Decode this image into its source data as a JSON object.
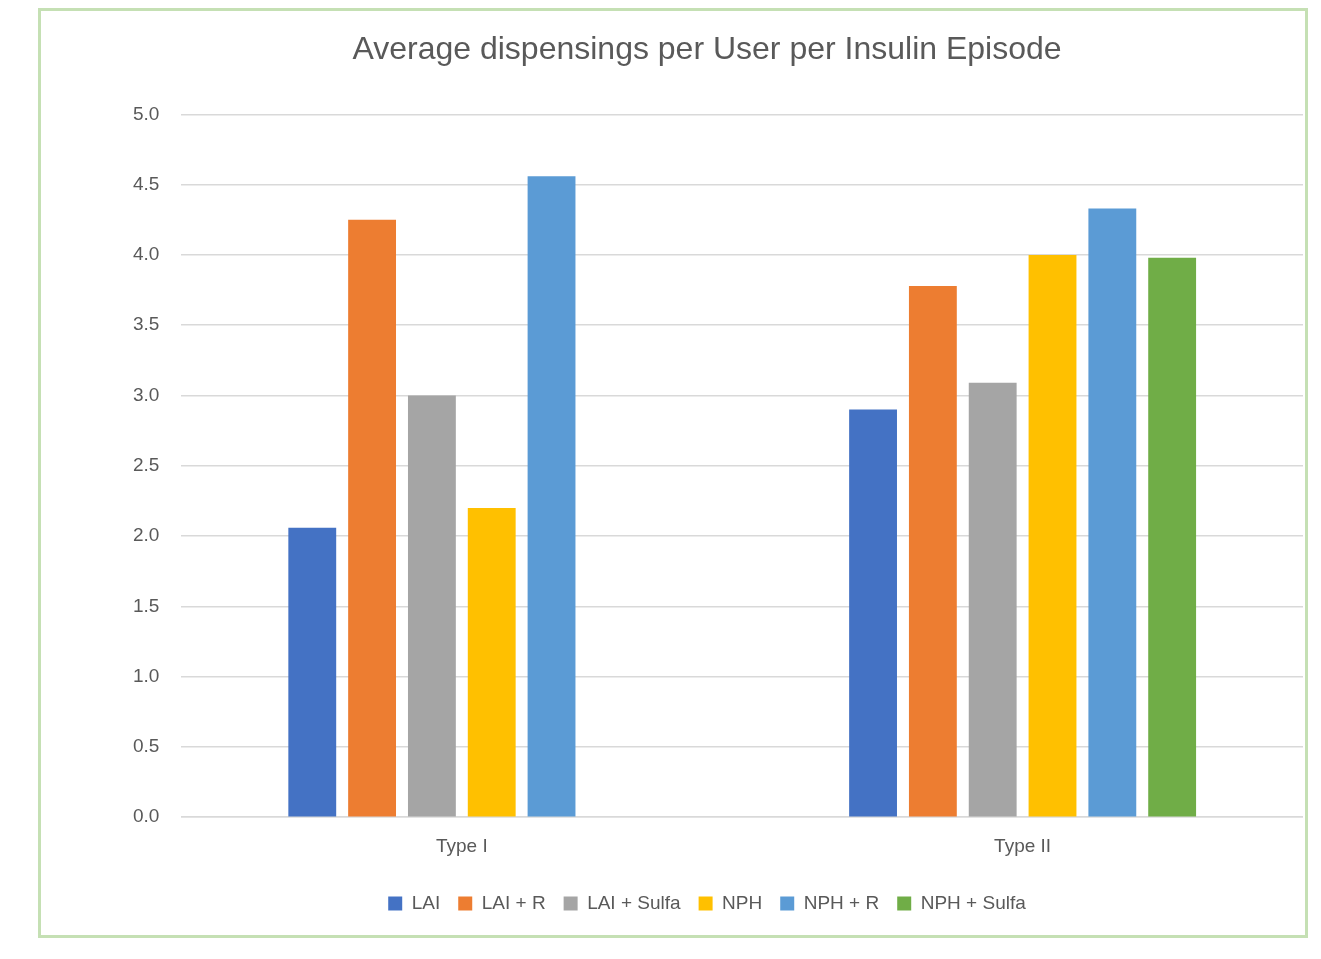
{
  "chart_data": {
    "type": "bar",
    "title": "Average dispensings per User per Insulin Episode",
    "categories": [
      "Type I",
      "Type II"
    ],
    "series": [
      {
        "name": "LAI",
        "color": "#4472c4",
        "values": [
          2.06,
          2.9
        ]
      },
      {
        "name": "LAI + R",
        "color": "#ed7d31",
        "values": [
          4.25,
          3.78
        ]
      },
      {
        "name": "LAI + Sulfa",
        "color": "#a5a5a5",
        "values": [
          3.0,
          3.09
        ]
      },
      {
        "name": "NPH",
        "color": "#ffc000",
        "values": [
          2.2,
          4.0
        ]
      },
      {
        "name": "NPH + R",
        "color": "#5b9bd5",
        "values": [
          4.56,
          4.33
        ]
      },
      {
        "name": "NPH + Sulfa",
        "color": "#70ad47",
        "values": [
          null,
          3.98
        ]
      }
    ],
    "ylim": [
      0,
      5
    ],
    "yticks": [
      {
        "value": 0,
        "label": "0.0"
      },
      {
        "value": 0.5,
        "label": "0.5"
      },
      {
        "value": 1,
        "label": "1.0"
      },
      {
        "value": 1.5,
        "label": "1.5"
      },
      {
        "value": 2,
        "label": "2.0"
      },
      {
        "value": 2.5,
        "label": "2.5"
      },
      {
        "value": 3,
        "label": "3.0"
      },
      {
        "value": 3.5,
        "label": "3.5"
      },
      {
        "value": 4,
        "label": "4.0"
      },
      {
        "value": 4.5,
        "label": "4.5"
      },
      {
        "value": 5,
        "label": "5.0"
      }
    ],
    "grid": "y",
    "legend": "bottom"
  }
}
